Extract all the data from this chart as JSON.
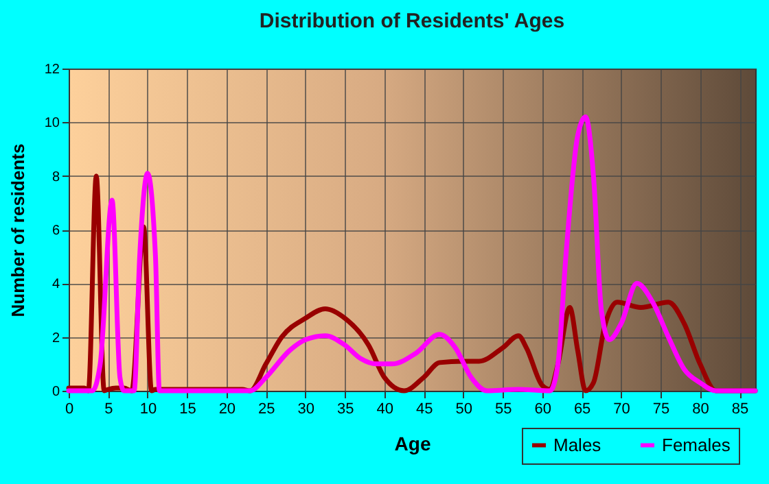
{
  "chart_data": {
    "type": "line",
    "title": "Distribution of Residents' Ages",
    "xlabel": "Age",
    "ylabel": "Number of residents",
    "xlim": [
      0,
      87
    ],
    "xticks": [
      0,
      5,
      10,
      15,
      20,
      25,
      30,
      35,
      40,
      45,
      50,
      55,
      60,
      65,
      70,
      75,
      80,
      85
    ],
    "ylim": [
      0,
      12
    ],
    "yticks": [
      0,
      2,
      4,
      6,
      8,
      10,
      12
    ],
    "grid": true,
    "legend": "bottom right",
    "line_style": "solid",
    "series": [
      {
        "name": "Males",
        "color": "#990000",
        "x": [
          0,
          2,
          2.5,
          3.5,
          4.5,
          5,
          6,
          7,
          8,
          9.5,
          10.5,
          11,
          22,
          23,
          25,
          27,
          30,
          32.5,
          35,
          38,
          40,
          42.5,
          45,
          47,
          50,
          52,
          55,
          57,
          58,
          60,
          61,
          62,
          63.5,
          64.5,
          65.5,
          66.5,
          68,
          69.5,
          72.5,
          76,
          78,
          80,
          82,
          87
        ],
        "values": [
          0.1,
          0.1,
          0,
          8,
          0,
          0.05,
          0.1,
          0.1,
          0,
          6.1,
          0,
          0.05,
          0.05,
          0,
          1,
          2,
          2.7,
          3.05,
          2.7,
          1.7,
          0.5,
          0,
          0.5,
          1.05,
          1.1,
          1.1,
          1.6,
          2.05,
          1.6,
          0.2,
          0.05,
          1,
          3.1,
          1.5,
          0,
          0.3,
          2.5,
          3.3,
          3.1,
          3.3,
          2.5,
          1,
          0,
          0
        ]
      },
      {
        "name": "Females",
        "color": "#ff00ff",
        "x": [
          0,
          3,
          4,
          5.5,
          6.5,
          7,
          8.3,
          9,
          10,
          11,
          11.5,
          23,
          25,
          28,
          30,
          32.5,
          35,
          37,
          39,
          41,
          44,
          47,
          49,
          51,
          53,
          57,
          61,
          62,
          63,
          64.5,
          65.5,
          66.5,
          67.5,
          68.5,
          70,
          72,
          74,
          76,
          78,
          80,
          82,
          87
        ],
        "values": [
          0,
          0,
          1,
          7.1,
          0.5,
          0,
          0,
          5,
          8.1,
          5,
          0,
          0,
          0.5,
          1.5,
          1.9,
          2.05,
          1.7,
          1.2,
          1,
          1,
          1.4,
          2.1,
          1.6,
          0.5,
          0,
          0.05,
          0,
          1,
          5,
          9.5,
          10.2,
          8,
          3,
          1.9,
          2.5,
          4,
          3.3,
          2,
          0.8,
          0.3,
          0,
          0
        ]
      }
    ]
  }
}
